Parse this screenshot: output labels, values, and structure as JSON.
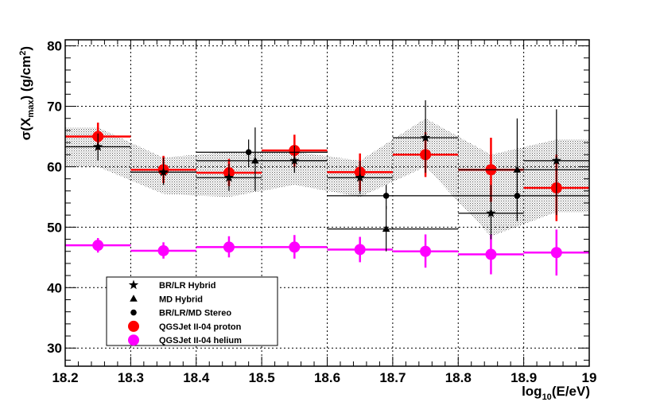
{
  "chart_data": {
    "type": "scatter",
    "title": "",
    "xlabel": "log10(E/eV)",
    "xlabel_parts": {
      "pre": "log",
      "sub": "10",
      "post": "(E/eV)"
    },
    "ylabel": "σ(Xmax) (g/cm2)",
    "ylabel_parts": {
      "pre": "σ(X",
      "sub": "max",
      "mid": ") (g/cm",
      "sup": "2",
      "post": ")"
    },
    "xlim": [
      18.2,
      19.0
    ],
    "ylim": [
      27,
      81
    ],
    "x_ticks": [
      "18.2",
      "18.3",
      "18.4",
      "18.5",
      "18.6",
      "18.7",
      "18.8",
      "18.9",
      "19"
    ],
    "y_ticks": [
      "30",
      "40",
      "50",
      "60",
      "70",
      "80"
    ],
    "grid": true,
    "legend_position": "bottom-left",
    "band": {
      "description": "systematic uncertainty band",
      "x": [
        18.25,
        18.35,
        18.45,
        18.55,
        18.65,
        18.75,
        18.85,
        18.95
      ],
      "upper": [
        66.5,
        61.5,
        62.5,
        62.5,
        61.0,
        68.0,
        62.0,
        64.5
      ],
      "lower": [
        60.0,
        55.5,
        55.0,
        57.0,
        55.0,
        60.0,
        48.5,
        52.5
      ]
    },
    "series": [
      {
        "name": "BR/LR Hybrid",
        "marker": "star",
        "color": "#000000",
        "points": [
          {
            "x": 18.25,
            "y": 63.3,
            "xlo": 18.2,
            "xhi": 18.3,
            "ylo": 61.0,
            "yhi": 65.5
          },
          {
            "x": 18.35,
            "y": 59.1,
            "xlo": 18.3,
            "xhi": 18.4,
            "ylo": 57.0,
            "yhi": 61.5
          },
          {
            "x": 18.45,
            "y": 58.2,
            "xlo": 18.4,
            "xhi": 18.5,
            "ylo": 56.0,
            "yhi": 60.5
          },
          {
            "x": 18.55,
            "y": 61.0,
            "xlo": 18.5,
            "xhi": 18.6,
            "ylo": 59.0,
            "yhi": 63.5
          },
          {
            "x": 18.65,
            "y": 58.2,
            "xlo": 18.6,
            "xhi": 18.7,
            "ylo": 55.5,
            "yhi": 61.0
          },
          {
            "x": 18.75,
            "y": 64.8,
            "xlo": 18.7,
            "xhi": 18.8,
            "ylo": 59.0,
            "yhi": 71.0
          },
          {
            "x": 18.85,
            "y": 52.3,
            "xlo": 18.8,
            "xhi": 18.9,
            "ylo": 48.0,
            "yhi": 57.0
          },
          {
            "x": 18.95,
            "y": 61.0,
            "xlo": 18.9,
            "xhi": 19.0,
            "ylo": 52.0,
            "yhi": 69.5
          }
        ]
      },
      {
        "name": "MD Hybrid",
        "marker": "triangle",
        "color": "#000000",
        "points": [
          {
            "x": 18.49,
            "y": 61.0,
            "xlo": 18.4,
            "xhi": 18.6,
            "ylo": 56.0,
            "yhi": 66.5
          },
          {
            "x": 18.69,
            "y": 49.7,
            "xlo": 18.6,
            "xhi": 18.8,
            "ylo": 46.0,
            "yhi": 53.5
          },
          {
            "x": 18.89,
            "y": 59.5,
            "xlo": 18.8,
            "xhi": 19.0,
            "ylo": 51.0,
            "yhi": 68.0
          }
        ]
      },
      {
        "name": "BR/LR/MD Stereo",
        "marker": "circle",
        "color": "#000000",
        "points": [
          {
            "x": 18.48,
            "y": 62.4,
            "xlo": 18.4,
            "xhi": 18.6,
            "ylo": 60.0,
            "yhi": 64.5
          },
          {
            "x": 18.69,
            "y": 55.2,
            "xlo": 18.6,
            "xhi": 18.8,
            "ylo": 53.0,
            "yhi": 57.0
          },
          {
            "x": 18.89,
            "y": 55.2,
            "xlo": 18.8,
            "xhi": 19.0,
            "ylo": 51.5,
            "yhi": 59.0
          }
        ]
      },
      {
        "name": "QGSJet II-04 proton",
        "marker": "big-circle",
        "color": "#ff0000",
        "points": [
          {
            "x": 18.25,
            "y": 65.0,
            "xlo": 18.2,
            "xhi": 18.3,
            "ylo": 62.8,
            "yhi": 67.3
          },
          {
            "x": 18.35,
            "y": 59.5,
            "xlo": 18.3,
            "xhi": 18.4,
            "ylo": 57.3,
            "yhi": 61.8
          },
          {
            "x": 18.45,
            "y": 59.0,
            "xlo": 18.4,
            "xhi": 18.5,
            "ylo": 56.8,
            "yhi": 61.3
          },
          {
            "x": 18.55,
            "y": 62.7,
            "xlo": 18.5,
            "xhi": 18.6,
            "ylo": 60.0,
            "yhi": 65.3
          },
          {
            "x": 18.65,
            "y": 59.1,
            "xlo": 18.6,
            "xhi": 18.7,
            "ylo": 56.0,
            "yhi": 62.2
          },
          {
            "x": 18.75,
            "y": 62.0,
            "xlo": 18.7,
            "xhi": 18.8,
            "ylo": 58.3,
            "yhi": 65.7
          },
          {
            "x": 18.85,
            "y": 59.5,
            "xlo": 18.8,
            "xhi": 18.9,
            "ylo": 54.2,
            "yhi": 64.8
          },
          {
            "x": 18.95,
            "y": 56.5,
            "xlo": 18.9,
            "xhi": 19.0,
            "ylo": 51.0,
            "yhi": 62.0
          }
        ]
      },
      {
        "name": "QGSJet II-04 helium",
        "marker": "big-circle",
        "color": "#ff00ff",
        "points": [
          {
            "x": 18.25,
            "y": 47.0,
            "xlo": 18.2,
            "xhi": 18.3,
            "ylo": 45.8,
            "yhi": 48.2
          },
          {
            "x": 18.35,
            "y": 46.1,
            "xlo": 18.3,
            "xhi": 18.4,
            "ylo": 44.8,
            "yhi": 47.5
          },
          {
            "x": 18.45,
            "y": 46.7,
            "xlo": 18.4,
            "xhi": 18.5,
            "ylo": 45.0,
            "yhi": 48.5
          },
          {
            "x": 18.55,
            "y": 46.7,
            "xlo": 18.5,
            "xhi": 18.6,
            "ylo": 44.8,
            "yhi": 48.7
          },
          {
            "x": 18.65,
            "y": 46.3,
            "xlo": 18.6,
            "xhi": 18.7,
            "ylo": 44.2,
            "yhi": 48.4
          },
          {
            "x": 18.75,
            "y": 46.0,
            "xlo": 18.7,
            "xhi": 18.8,
            "ylo": 43.3,
            "yhi": 48.8
          },
          {
            "x": 18.85,
            "y": 45.5,
            "xlo": 18.8,
            "xhi": 18.9,
            "ylo": 42.2,
            "yhi": 48.8
          },
          {
            "x": 18.95,
            "y": 45.8,
            "xlo": 18.9,
            "xhi": 19.0,
            "ylo": 42.0,
            "yhi": 49.6
          }
        ]
      }
    ]
  }
}
